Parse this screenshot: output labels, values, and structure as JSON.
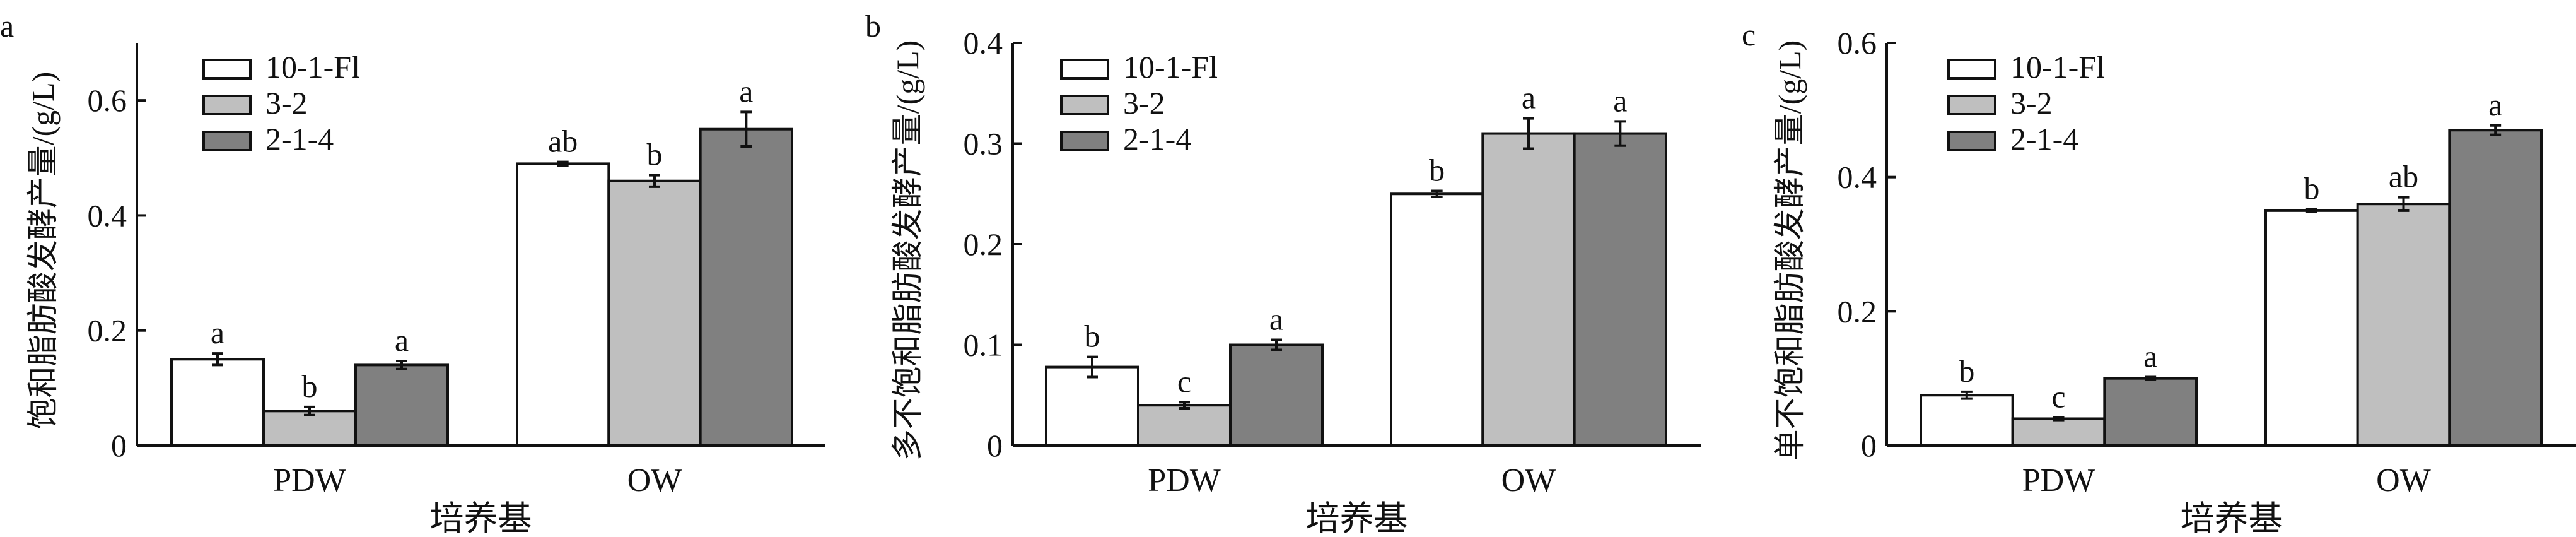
{
  "colors": {
    "10-1-Fl": "#ffffff",
    "3-2": "#bfbfbf",
    "2-1-4": "#808080",
    "stroke": "#111111"
  },
  "chart_data": [
    {
      "type": "bar",
      "panel_label": "a",
      "ylabel": "饱和脂肪酸发酵产量/(g/L)",
      "xlabel": "培养基",
      "categories": [
        "PDW",
        "OW"
      ],
      "ylim": [
        0,
        0.7
      ],
      "yticks": [
        0,
        0.2,
        0.4,
        0.6
      ],
      "ytick_labels": [
        "0",
        "0.2",
        "0.4",
        "0.6"
      ],
      "legend_position": "top-left",
      "grid": false,
      "series": [
        {
          "name": "10-1-Fl",
          "values": [
            0.15,
            0.49
          ],
          "errors": [
            0.01,
            0.003
          ],
          "sig": [
            "a",
            "ab"
          ]
        },
        {
          "name": "3-2",
          "values": [
            0.06,
            0.46
          ],
          "errors": [
            0.007,
            0.01
          ],
          "sig": [
            "b",
            "b"
          ]
        },
        {
          "name": "2-1-4",
          "values": [
            0.14,
            0.55
          ],
          "errors": [
            0.007,
            0.03
          ],
          "sig": [
            "a",
            "a"
          ]
        }
      ]
    },
    {
      "type": "bar",
      "panel_label": "b",
      "ylabel": "多不饱和脂肪酸发酵产量/(g/L)",
      "xlabel": "培养基",
      "categories": [
        "PDW",
        "OW"
      ],
      "ylim": [
        0,
        0.4
      ],
      "yticks": [
        0,
        0.1,
        0.2,
        0.3,
        0.4
      ],
      "ytick_labels": [
        "0",
        "0.1",
        "0.2",
        "0.3",
        "0.4"
      ],
      "legend_position": "top-left",
      "grid": false,
      "series": [
        {
          "name": "10-1-Fl",
          "values": [
            0.078,
            0.25
          ],
          "errors": [
            0.01,
            0.003
          ],
          "sig": [
            "b",
            "b"
          ]
        },
        {
          "name": "3-2",
          "values": [
            0.04,
            0.31
          ],
          "errors": [
            0.003,
            0.015
          ],
          "sig": [
            "c",
            "a"
          ]
        },
        {
          "name": "2-1-4",
          "values": [
            0.1,
            0.31
          ],
          "errors": [
            0.005,
            0.012
          ],
          "sig": [
            "a",
            "a"
          ]
        }
      ]
    },
    {
      "type": "bar",
      "panel_label": "c",
      "ylabel": "单不饱和脂肪酸发酵产量/(g/L)",
      "xlabel": "培养基",
      "categories": [
        "PDW",
        "OW"
      ],
      "ylim": [
        0,
        0.6
      ],
      "yticks": [
        0,
        0.2,
        0.4,
        0.6
      ],
      "ytick_labels": [
        "0",
        "0.2",
        "0.4",
        "0.6"
      ],
      "legend_position": "top-left",
      "grid": false,
      "series": [
        {
          "name": "10-1-Fl",
          "values": [
            0.075,
            0.35
          ],
          "errors": [
            0.005,
            0.002
          ],
          "sig": [
            "b",
            "b"
          ]
        },
        {
          "name": "3-2",
          "values": [
            0.04,
            0.36
          ],
          "errors": [
            0.002,
            0.01
          ],
          "sig": [
            "c",
            "ab"
          ]
        },
        {
          "name": "2-1-4",
          "values": [
            0.1,
            0.47
          ],
          "errors": [
            0.002,
            0.007
          ],
          "sig": [
            "a",
            "a"
          ]
        }
      ]
    }
  ]
}
